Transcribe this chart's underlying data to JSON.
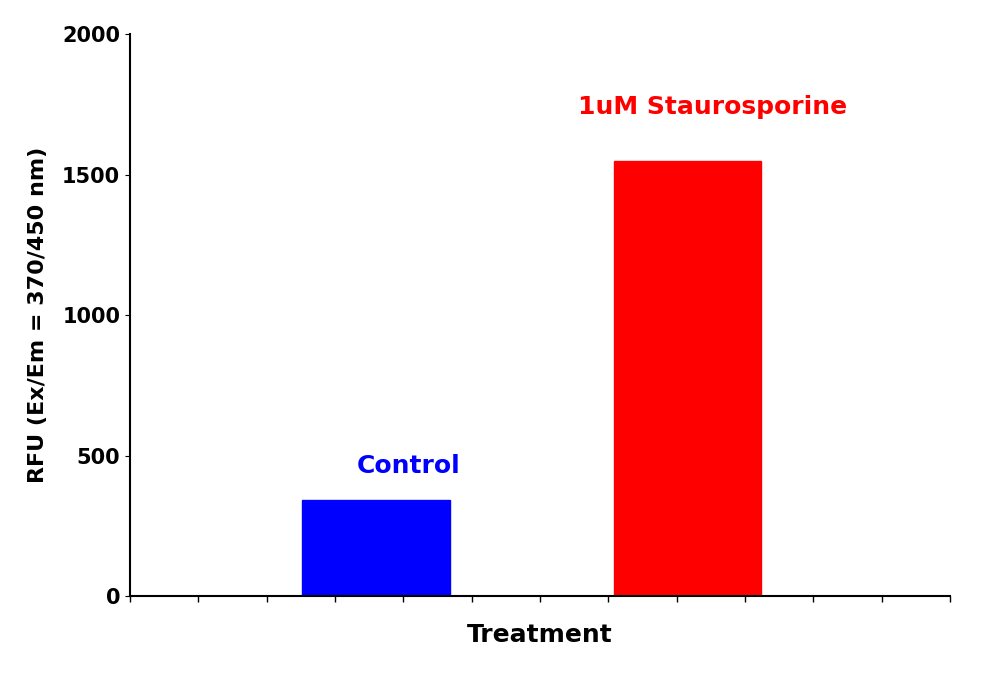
{
  "categories": [
    "Control",
    "1uM Staurosporine"
  ],
  "values": [
    340,
    1550
  ],
  "bar_colors": [
    "#0000ff",
    "#ff0000"
  ],
  "bar_labels": [
    "Control",
    "1uM Staurosporine"
  ],
  "bar_label_colors": [
    "#0000ff",
    "#ff0000"
  ],
  "xlabel": "Treatment",
  "ylabel": "RFU (Ex/Em = 370/450 nm)",
  "ylim": [
    0,
    2000
  ],
  "yticks": [
    0,
    500,
    1000,
    1500,
    2000
  ],
  "xlabel_fontsize": 18,
  "ylabel_fontsize": 16,
  "tick_fontsize": 15,
  "label_fontsize": 18,
  "bar_width": 0.18,
  "background_color": "#ffffff",
  "spine_linewidth": 1.5,
  "x_positions": [
    0.3,
    0.68
  ],
  "xlim": [
    0.0,
    1.0
  ]
}
